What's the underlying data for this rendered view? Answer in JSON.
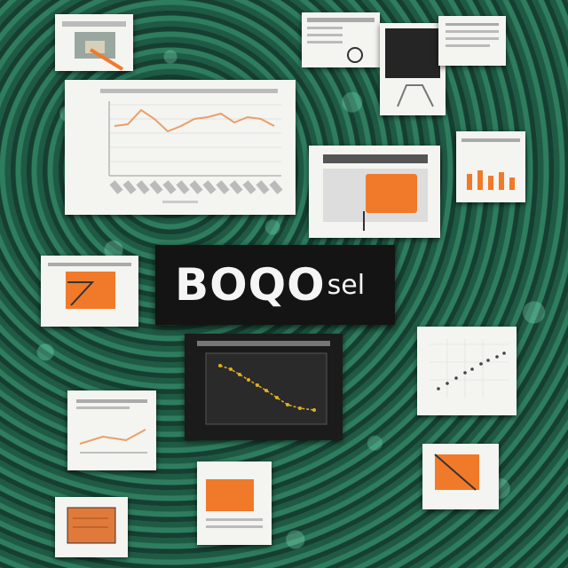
{
  "title": {
    "main": "BOQO",
    "suffix": "sel"
  },
  "colors": {
    "background": "#245c46",
    "accent": "#f07a2a",
    "line": "#e8a06a",
    "point": "#e0b020"
  }
}
